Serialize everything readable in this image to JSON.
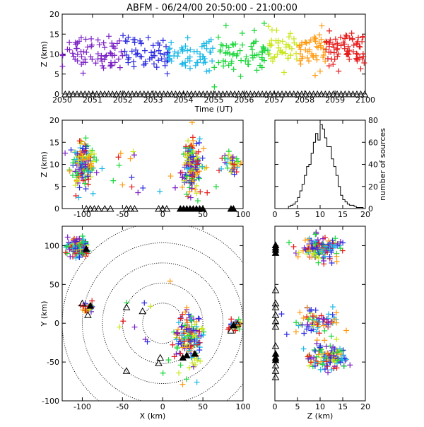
{
  "title": "ABFM - 06/24/00 20:50:00 - 21:00:00",
  "chart_data": [
    {
      "panel": "time-height",
      "type": "scatter",
      "xlabel": "Time (UT)",
      "ylabel": "Z (km)",
      "xlim": [
        2050,
        2100
      ],
      "ylim": [
        0,
        20
      ],
      "xticks": [
        "2050",
        "2051",
        "2052",
        "2053",
        "2054",
        "2055",
        "2056",
        "2057",
        "2058",
        "2059",
        "2100"
      ],
      "yticks": [
        "0",
        "5",
        "10",
        "15",
        "20"
      ],
      "color_scale": "time: purple → blue → cyan → green → yellow → orange → red",
      "clusters": [
        {
          "t_start": 2050.0,
          "t_end": 2052.0,
          "z_center": 10.5,
          "z_spread": 3.5,
          "color": "#7a1fc4",
          "n": 70
        },
        {
          "t_start": 2052.0,
          "t_end": 2053.5,
          "z_center": 10.0,
          "z_spread": 3.5,
          "color": "#2a2ae0",
          "n": 55
        },
        {
          "t_start": 2053.5,
          "t_end": 2055.0,
          "z_center": 10.0,
          "z_spread": 3.0,
          "color": "#19b7e6",
          "n": 55
        },
        {
          "t_start": 2055.0,
          "t_end": 2056.8,
          "z_center": 10.5,
          "z_spread": 4.0,
          "color": "#18d638",
          "n": 65
        },
        {
          "t_start": 2056.8,
          "t_end": 2057.8,
          "z_center": 11.0,
          "z_spread": 3.5,
          "color": "#c8e618",
          "n": 40
        },
        {
          "t_start": 2057.8,
          "t_end": 2058.7,
          "z_center": 11.0,
          "z_spread": 3.5,
          "color": "#ff9a10",
          "n": 45
        },
        {
          "t_start": 2058.7,
          "t_end": 2100.0,
          "z_center": 11.0,
          "z_spread": 3.5,
          "color": "#e61b1b",
          "n": 70
        }
      ],
      "ground_triangles_z": 0
    },
    {
      "panel": "x-z",
      "type": "scatter",
      "xlabel": "",
      "ylabel": "Z (km)",
      "xlim": [
        -125,
        100
      ],
      "ylim": [
        0,
        20
      ],
      "xticks": [
        "-100",
        "-50",
        "0",
        "50",
        "100"
      ],
      "yticks": [
        "0",
        "5",
        "10",
        "15",
        "20"
      ],
      "clusters": [
        {
          "x_center": -100,
          "x_spread": 12,
          "z_center": 10,
          "z_spread": 4,
          "n": 160
        },
        {
          "x_center": 35,
          "x_spread": 10,
          "z_center": 10,
          "z_spread": 5,
          "n": 170
        },
        {
          "x_center": 87,
          "x_spread": 8,
          "z_center": 10,
          "z_spread": 2,
          "n": 40
        }
      ]
    },
    {
      "panel": "histogram",
      "type": "bar",
      "xlabel": "",
      "ylabel": "number of sources",
      "xlim": [
        0,
        20
      ],
      "ylim": [
        0,
        80
      ],
      "xticks": [
        "0",
        "5",
        "10",
        "15",
        "20"
      ],
      "yticks": [
        "0",
        "20",
        "40",
        "60",
        "80"
      ],
      "bin_width": 0.5,
      "bins_start": 0,
      "values": [
        0,
        0,
        0,
        0,
        0,
        0,
        2,
        3,
        4,
        6,
        10,
        16,
        22,
        30,
        38,
        40,
        50,
        60,
        68,
        62,
        76,
        72,
        64,
        56,
        56,
        45,
        38,
        30,
        20,
        12,
        8,
        6,
        4,
        3,
        3,
        2,
        1,
        1,
        1,
        0
      ]
    },
    {
      "panel": "x-y",
      "type": "scatter",
      "xlabel": "X (km)",
      "ylabel": "Y (km)",
      "xlim": [
        -125,
        100
      ],
      "ylim": [
        -100,
        125
      ],
      "xticks": [
        "-100",
        "-50",
        "0",
        "50",
        "100"
      ],
      "yticks": [
        "-100",
        "-50",
        "0",
        "50",
        "100"
      ],
      "range_rings_km": [
        25,
        50,
        75,
        100,
        125
      ],
      "clusters": [
        {
          "x_center": -105,
          "x_spread": 10,
          "y_center": 98,
          "y_spread": 10,
          "n": 150
        },
        {
          "x_center": 32,
          "x_spread": 14,
          "y_center": -20,
          "y_spread": 25,
          "n": 150
        },
        {
          "x_center": 90,
          "x_spread": 6,
          "y_center": -3,
          "y_spread": 4,
          "n": 40
        },
        {
          "x_center": -95,
          "x_spread": 10,
          "y_center": 20,
          "y_spread": 6,
          "n": 20
        }
      ],
      "station_triangles": [
        [
          -95,
          95
        ],
        [
          -90,
          22
        ],
        [
          -100,
          25
        ],
        [
          -93,
          10
        ],
        [
          -25,
          15
        ],
        [
          -45,
          20
        ],
        [
          30,
          -42
        ],
        [
          40,
          -40
        ],
        [
          25,
          -45
        ],
        [
          -3,
          -45
        ],
        [
          -5,
          -52
        ],
        [
          -45,
          -62
        ],
        [
          88,
          -3
        ],
        [
          85,
          -10
        ],
        [
          93,
          -2
        ]
      ]
    },
    {
      "panel": "z-y",
      "type": "scatter",
      "xlabel": "Z (km)",
      "ylabel": "",
      "xlim": [
        0,
        20
      ],
      "ylim": [
        -100,
        125
      ],
      "xticks": [
        "0",
        "5",
        "10",
        "15",
        "20"
      ],
      "yticks": [
        "-100",
        "-50",
        "0",
        "50",
        "100"
      ],
      "clusters": [
        {
          "z_center": 10,
          "z_spread": 3.5,
          "y_center": 95,
          "y_spread": 12,
          "n": 140
        },
        {
          "z_center": 9,
          "z_spread": 4,
          "y_center": 0,
          "y_spread": 15,
          "n": 80
        },
        {
          "z_center": 12,
          "z_spread": 3.5,
          "y_center": -45,
          "y_spread": 12,
          "n": 120
        }
      ]
    }
  ]
}
